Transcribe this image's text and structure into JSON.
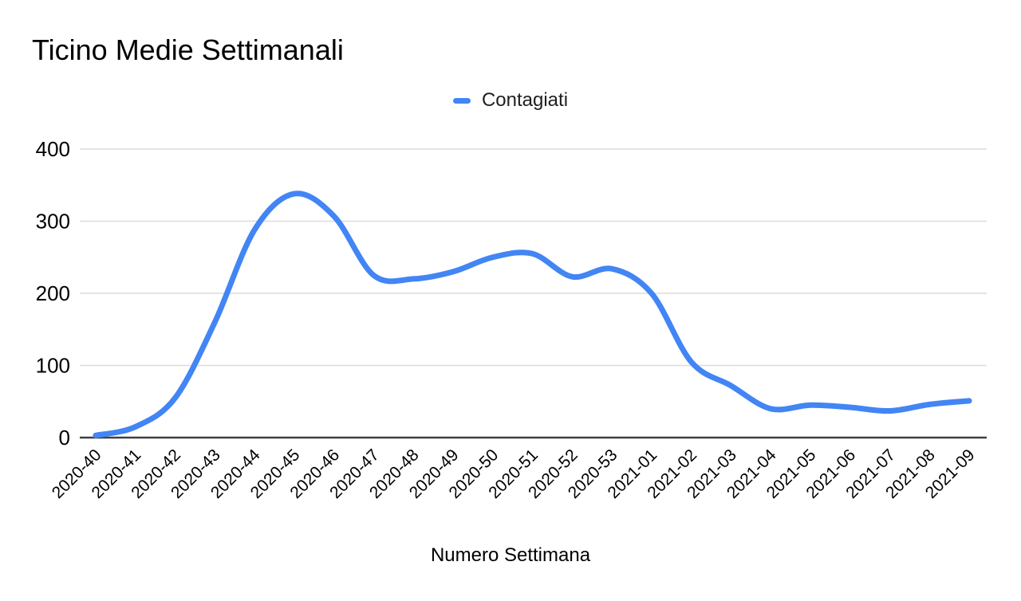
{
  "title": "Ticino Medie Settimanali",
  "legend": {
    "label": "Contagiati",
    "color": "#4285f4"
  },
  "x_axis_title": "Numero Settimana",
  "chart_data": {
    "type": "line",
    "title": "Ticino Medie Settimanali",
    "xlabel": "Numero Settimana",
    "ylabel": "",
    "series": [
      {
        "name": "Contagiati",
        "color": "#4285f4",
        "values": [
          3,
          15,
          55,
          160,
          288,
          338,
          307,
          225,
          220,
          230,
          250,
          255,
          223,
          234,
          200,
          105,
          72,
          40,
          45,
          42,
          37,
          46,
          51
        ]
      }
    ],
    "categories": [
      "2020-40",
      "2020-41",
      "2020-42",
      "2020-43",
      "2020-44",
      "2020-45",
      "2020-46",
      "2020-47",
      "2020-48",
      "2020-49",
      "2020-50",
      "2020-51",
      "2020-52",
      "2020-53",
      "2021-01",
      "2021-02",
      "2021-03",
      "2021-04",
      "2021-05",
      "2021-06",
      "2021-07",
      "2021-08",
      "2021-09"
    ],
    "ylim": [
      0,
      400
    ],
    "yticks": [
      0,
      100,
      200,
      300,
      400
    ],
    "grid": true,
    "smooth": true,
    "legend_position": "top-center",
    "grid_color": "#dcdcdc",
    "axis_line_color": "#404040",
    "tick_label_color": "#000000",
    "x_labels_rotation_deg": -45
  }
}
